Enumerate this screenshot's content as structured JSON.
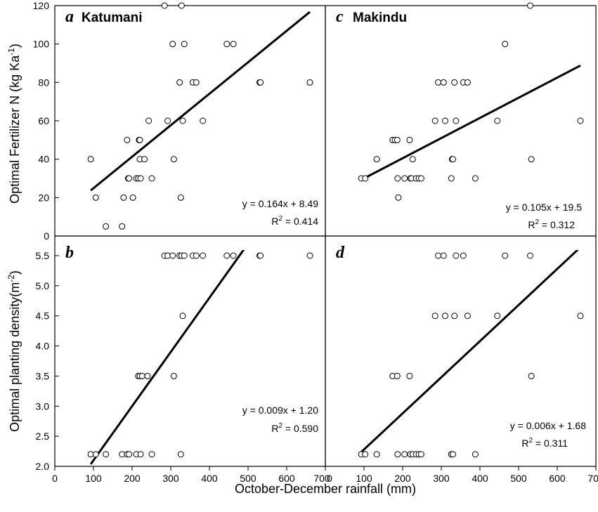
{
  "chart_data": {
    "type": "scatter",
    "xlabel": "October-December rainfall (mm)",
    "ylabel_top": "Optimal Fertilizer N (kg Ka",
    "ylabel_top_sup": "-1",
    "ylabel_top_end": ")",
    "ylabel_bottom": "Optimal planting density(m",
    "ylabel_bottom_sup": "-2",
    "ylabel_bottom_end": ")",
    "xlim": [
      0,
      700
    ],
    "x_ticks": [
      0,
      100,
      200,
      300,
      400,
      500,
      600,
      700
    ],
    "x_tick_labels_left": [
      "0",
      "100",
      "200",
      "300",
      "400",
      "500",
      "600",
      "700"
    ],
    "x_tick_labels_right": [
      "0",
      "100",
      "200",
      "300",
      "400",
      "500",
      "600",
      "700"
    ],
    "top_ylim": [
      0,
      120
    ],
    "top_y_ticks": [
      "0",
      "20",
      "40",
      "60",
      "80",
      "100",
      "120"
    ],
    "bottom_ylim": [
      2.0,
      5.5
    ],
    "bottom_y_ticks": [
      "2.0",
      "2.5",
      "3.0",
      "3.5",
      "4.0",
      "4.5",
      "5.0",
      "5.5"
    ],
    "panels": [
      {
        "letter": "a",
        "site": "Katumani",
        "equation": "y = 0.164x + 8.49",
        "r2_label": "R",
        "r2_sup": "2",
        "r2_value": " = 0.414",
        "fit": {
          "slope": 0.164,
          "intercept": 8.49,
          "x_range": [
            93,
            660
          ]
        },
        "points": [
          [
            93,
            40
          ],
          [
            106,
            20
          ],
          [
            132,
            5
          ],
          [
            174,
            5
          ],
          [
            178,
            20
          ],
          [
            187,
            50
          ],
          [
            190,
            30
          ],
          [
            192,
            30
          ],
          [
            202,
            20
          ],
          [
            211,
            30
          ],
          [
            216,
            30
          ],
          [
            218,
            50
          ],
          [
            219,
            50
          ],
          [
            220,
            50
          ],
          [
            220,
            40
          ],
          [
            222,
            30
          ],
          [
            232,
            40
          ],
          [
            243,
            60
          ],
          [
            251,
            30
          ],
          [
            284,
            120
          ],
          [
            292,
            60
          ],
          [
            305,
            100
          ],
          [
            308,
            40
          ],
          [
            323,
            80
          ],
          [
            326,
            20
          ],
          [
            328,
            120
          ],
          [
            331,
            60
          ],
          [
            335,
            100
          ],
          [
            357,
            80
          ],
          [
            366,
            80
          ],
          [
            383,
            60
          ],
          [
            445,
            100
          ],
          [
            462,
            100
          ],
          [
            530,
            80
          ],
          [
            532,
            80
          ],
          [
            660,
            80
          ]
        ]
      },
      {
        "letter": "b",
        "site": "",
        "equation": "y = 0.009x + 1.20",
        "r2_label": "R",
        "r2_sup": "2",
        "r2_value": " = 0.590",
        "fit": {
          "slope": 0.009,
          "intercept": 1.2,
          "x_range": [
            93,
            500
          ]
        },
        "points": [
          [
            93,
            2.2
          ],
          [
            106,
            2.2
          ],
          [
            132,
            2.2
          ],
          [
            174,
            2.2
          ],
          [
            187,
            2.2
          ],
          [
            192,
            2.2
          ],
          [
            211,
            2.2
          ],
          [
            222,
            2.2
          ],
          [
            251,
            2.2
          ],
          [
            326,
            2.2
          ],
          [
            216,
            3.5
          ],
          [
            220,
            3.5
          ],
          [
            226,
            3.5
          ],
          [
            240,
            3.5
          ],
          [
            308,
            3.5
          ],
          [
            331,
            4.5
          ],
          [
            284,
            5.5
          ],
          [
            292,
            5.5
          ],
          [
            305,
            5.5
          ],
          [
            323,
            5.5
          ],
          [
            328,
            5.5
          ],
          [
            335,
            5.5
          ],
          [
            357,
            5.5
          ],
          [
            366,
            5.5
          ],
          [
            383,
            5.5
          ],
          [
            445,
            5.5
          ],
          [
            462,
            5.5
          ],
          [
            530,
            5.5
          ],
          [
            532,
            5.5
          ],
          [
            660,
            5.5
          ]
        ]
      },
      {
        "letter": "c",
        "site": "Makindu",
        "equation": "y = 0.105x + 19.5",
        "r2_label": "R",
        "r2_sup": "2",
        "r2_value": " = 0.312",
        "fit": {
          "slope": 0.105,
          "intercept": 19.5,
          "x_range": [
            93,
            660
          ]
        },
        "points": [
          [
            93,
            30
          ],
          [
            103,
            30
          ],
          [
            133,
            40
          ],
          [
            174,
            50
          ],
          [
            180,
            50
          ],
          [
            186,
            50
          ],
          [
            187,
            30
          ],
          [
            189,
            20
          ],
          [
            205,
            30
          ],
          [
            218,
            50
          ],
          [
            220,
            30
          ],
          [
            223,
            30
          ],
          [
            226,
            40
          ],
          [
            235,
            30
          ],
          [
            242,
            30
          ],
          [
            248,
            30
          ],
          [
            284,
            60
          ],
          [
            292,
            80
          ],
          [
            306,
            80
          ],
          [
            310,
            60
          ],
          [
            326,
            30
          ],
          [
            328,
            40
          ],
          [
            330,
            40
          ],
          [
            334,
            80
          ],
          [
            338,
            60
          ],
          [
            357,
            80
          ],
          [
            368,
            80
          ],
          [
            388,
            30
          ],
          [
            445,
            60
          ],
          [
            465,
            100
          ],
          [
            530,
            120
          ],
          [
            533,
            40
          ],
          [
            660,
            60
          ]
        ]
      },
      {
        "letter": "d",
        "site": "",
        "equation": "y = 0.006x + 1.68",
        "r2_label": "R",
        "r2_sup": "2",
        "r2_value": " = 0.311",
        "fit": {
          "slope": 0.006,
          "intercept": 1.68,
          "x_range": [
            93,
            660
          ]
        },
        "points": [
          [
            93,
            2.2
          ],
          [
            103,
            2.2
          ],
          [
            133,
            2.2
          ],
          [
            187,
            2.2
          ],
          [
            205,
            2.2
          ],
          [
            220,
            2.2
          ],
          [
            226,
            2.2
          ],
          [
            235,
            2.2
          ],
          [
            242,
            2.2
          ],
          [
            248,
            2.2
          ],
          [
            326,
            2.2
          ],
          [
            330,
            2.2
          ],
          [
            388,
            2.2
          ],
          [
            174,
            3.5
          ],
          [
            186,
            3.5
          ],
          [
            218,
            3.5
          ],
          [
            533,
            3.5
          ],
          [
            284,
            4.5
          ],
          [
            310,
            4.5
          ],
          [
            334,
            4.5
          ],
          [
            368,
            4.5
          ],
          [
            445,
            4.5
          ],
          [
            660,
            4.5
          ],
          [
            292,
            5.5
          ],
          [
            306,
            5.5
          ],
          [
            338,
            5.5
          ],
          [
            357,
            5.5
          ],
          [
            465,
            5.5
          ],
          [
            530,
            5.5
          ]
        ]
      }
    ]
  }
}
